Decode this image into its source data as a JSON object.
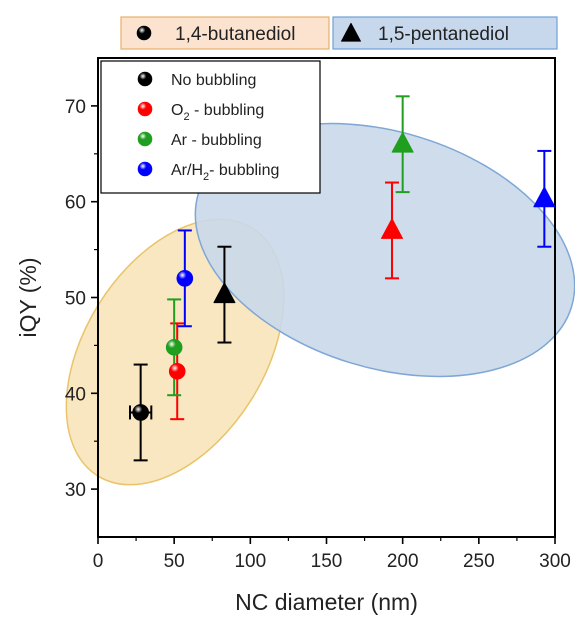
{
  "chart_data": {
    "type": "scatter",
    "xlabel": "NC diameter (nm)",
    "ylabel": "iQY (%)",
    "xlim": [
      0,
      300
    ],
    "ylim": [
      25,
      75
    ],
    "x_ticks": [
      0,
      50,
      100,
      150,
      200,
      250,
      300
    ],
    "y_ticks": [
      30,
      40,
      50,
      60,
      70
    ],
    "grid": false,
    "solvent_groups": [
      {
        "label": "1,4-butanediol",
        "marker": "sphere",
        "region_color": "#f8e3b6",
        "region_stroke": "#e9c46a",
        "box_fill": "#fbe3cf",
        "box_stroke": "#e8b06a"
      },
      {
        "label": "1,5-pentanediol",
        "marker": "triangle",
        "region_color": "#c9d8ea",
        "region_stroke": "#7fa7d6",
        "box_fill": "#c7d8ec",
        "box_stroke": "#6fa0d8"
      }
    ],
    "treatments": [
      {
        "label_main": "No bubbling",
        "label_sub": "",
        "label_tail": "",
        "color": "#000000"
      },
      {
        "label_main": "O",
        "label_sub": "2",
        "label_tail": " - bubbling",
        "color": "#ff0000"
      },
      {
        "label_main": "Ar - bubbling",
        "label_sub": "",
        "label_tail": "",
        "color": "#1f9e1f"
      },
      {
        "label_main": "Ar/H",
        "label_sub": "2",
        "label_tail": "- bubbling",
        "color": "#0000ff"
      }
    ],
    "series": [
      {
        "solvent": 0,
        "treatment": 0,
        "x": 28,
        "y": 38,
        "yerr": 5,
        "xerr": 7
      },
      {
        "solvent": 0,
        "treatment": 1,
        "x": 52,
        "y": 42.3,
        "yerr": 5,
        "xerr": 0
      },
      {
        "solvent": 0,
        "treatment": 2,
        "x": 50,
        "y": 44.8,
        "yerr": 5,
        "xerr": 0
      },
      {
        "solvent": 0,
        "treatment": 3,
        "x": 57,
        "y": 52,
        "yerr": 5,
        "xerr": 0
      },
      {
        "solvent": 1,
        "treatment": 0,
        "x": 83,
        "y": 50.3,
        "yerr": 5,
        "xerr": 0
      },
      {
        "solvent": 1,
        "treatment": 1,
        "x": 193,
        "y": 57,
        "yerr": 5,
        "xerr": 0
      },
      {
        "solvent": 1,
        "treatment": 2,
        "x": 200,
        "y": 66,
        "yerr": 5,
        "xerr": 0
      },
      {
        "solvent": 1,
        "treatment": 3,
        "x": 293,
        "y": 60.3,
        "yerr": 5,
        "xerr": 0
      }
    ]
  }
}
